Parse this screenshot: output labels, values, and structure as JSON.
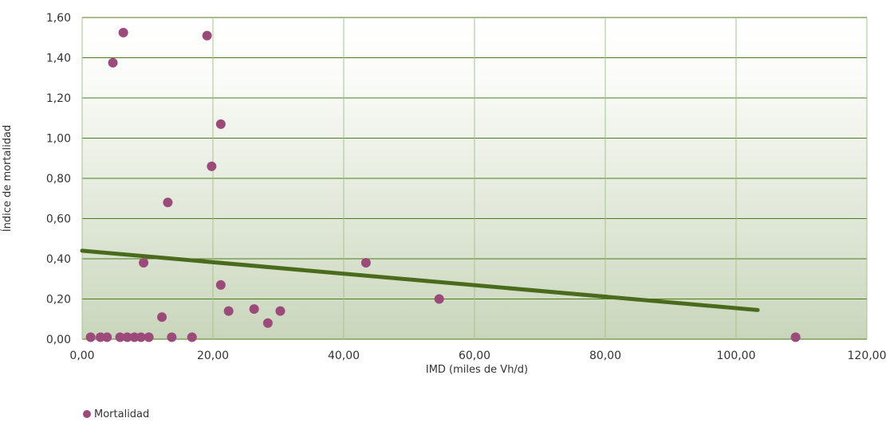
{
  "chart_data": {
    "type": "scatter",
    "title": "",
    "xlabel": "IMD (miles de Vh/d)",
    "ylabel": "Índice de mortalidad",
    "xlim": [
      0,
      120
    ],
    "ylim": [
      0,
      1.6
    ],
    "xticks": [
      "0,00",
      "20,00",
      "40,00",
      "60,00",
      "80,00",
      "100,00",
      "120,00"
    ],
    "yticks": [
      "0,00",
      "0,20",
      "0,40",
      "0,60",
      "0,80",
      "1,00",
      "1,20",
      "1,40",
      "1,60"
    ],
    "grid": true,
    "legend_position": "bottom-left",
    "series": [
      {
        "name": "Mortalidad",
        "color": "#9b4a7a",
        "points": [
          {
            "x": 1.3,
            "y": 0.01
          },
          {
            "x": 2.8,
            "y": 0.01
          },
          {
            "x": 3.8,
            "y": 0.01
          },
          {
            "x": 4.7,
            "y": 1.375
          },
          {
            "x": 5.8,
            "y": 0.01
          },
          {
            "x": 6.3,
            "y": 1.525
          },
          {
            "x": 6.9,
            "y": 0.01
          },
          {
            "x": 8.0,
            "y": 0.01
          },
          {
            "x": 9.0,
            "y": 0.01
          },
          {
            "x": 9.4,
            "y": 0.38
          },
          {
            "x": 10.2,
            "y": 0.01
          },
          {
            "x": 12.2,
            "y": 0.11
          },
          {
            "x": 13.1,
            "y": 0.68
          },
          {
            "x": 13.7,
            "y": 0.01
          },
          {
            "x": 16.8,
            "y": 0.01
          },
          {
            "x": 19.1,
            "y": 1.51
          },
          {
            "x": 19.8,
            "y": 0.86
          },
          {
            "x": 21.2,
            "y": 1.07
          },
          {
            "x": 21.2,
            "y": 0.27
          },
          {
            "x": 22.4,
            "y": 0.14
          },
          {
            "x": 26.3,
            "y": 0.15
          },
          {
            "x": 28.4,
            "y": 0.08
          },
          {
            "x": 30.3,
            "y": 0.14
          },
          {
            "x": 43.4,
            "y": 0.38
          },
          {
            "x": 54.6,
            "y": 0.2
          },
          {
            "x": 109.1,
            "y": 0.01
          }
        ]
      }
    ],
    "trendline": {
      "color": "#4a6b1c",
      "from": {
        "x": 0,
        "y": 0.44
      },
      "to": {
        "x": 103.3,
        "y": 0.145
      }
    }
  }
}
